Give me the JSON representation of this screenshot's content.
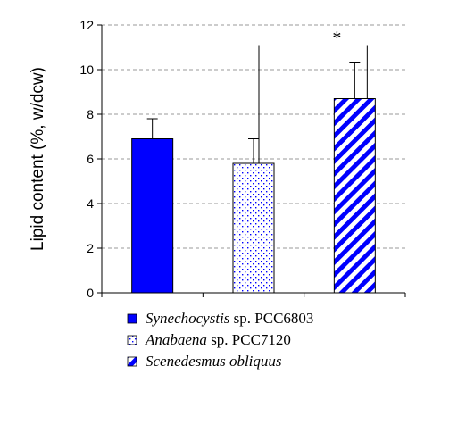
{
  "chart_data": {
    "type": "bar",
    "ylabel": "Lipid content (%, w/dcw)",
    "ylim": [
      0,
      12
    ],
    "yticks": [
      0,
      2,
      4,
      6,
      8,
      10,
      12
    ],
    "grid": true,
    "legend_position": "bottom",
    "bars": [
      {
        "label_italic": "Synechocystis",
        "label_rest": " sp. PCC6803",
        "value": 6.9,
        "error": 0.9,
        "fill": "solid",
        "color": "#0000ff"
      },
      {
        "label_italic": "Anabaena",
        "label_rest": " sp. PCC7120",
        "value": 5.8,
        "error": 1.1,
        "fill": "dots",
        "color": "#0000ff"
      },
      {
        "label_italic": "Scenedesmus obliquus",
        "label_rest": "",
        "value": 8.7,
        "error": 1.6,
        "fill": "stripes",
        "color": "#0000ff"
      }
    ],
    "extra_lines": [
      {
        "bar_index": 1,
        "y_top": 11.1
      },
      {
        "bar_index": 2,
        "y_top": 11.1
      }
    ],
    "annotations": [
      {
        "text": "*",
        "bar_index": 2,
        "y": 11.5
      }
    ]
  }
}
